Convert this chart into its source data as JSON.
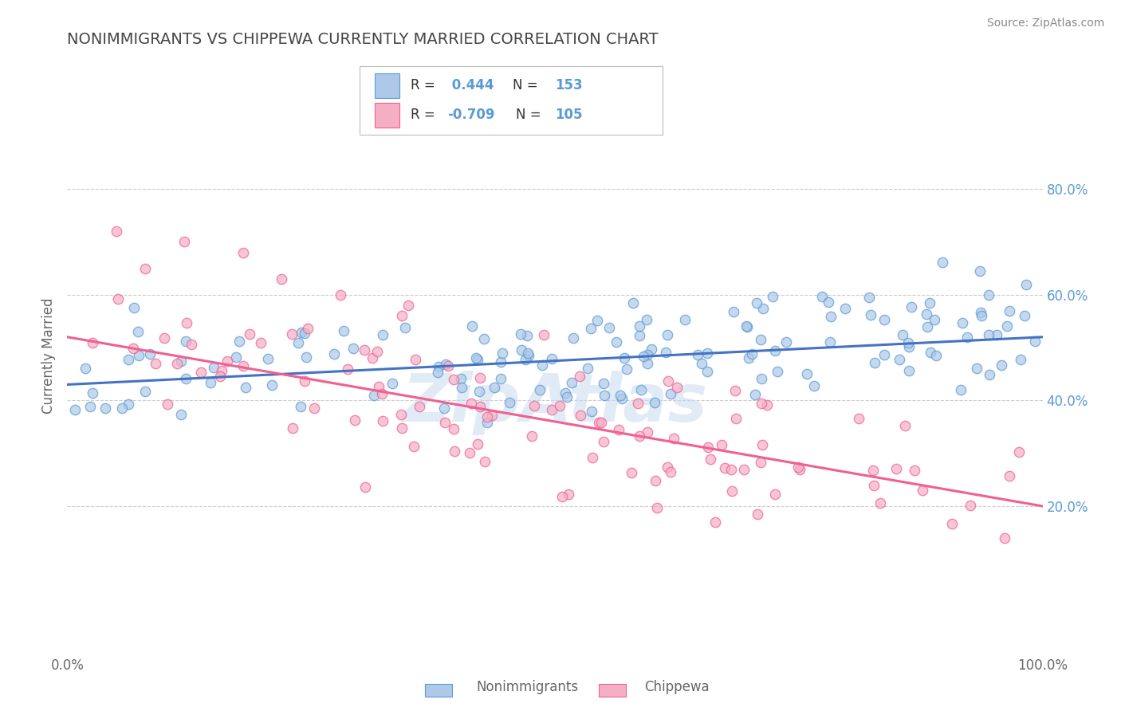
{
  "title": "NONIMMIGRANTS VS CHIPPEWA CURRENTLY MARRIED CORRELATION CHART",
  "source": "Source: ZipAtlas.com",
  "ylabel": "Currently Married",
  "x_min": 0.0,
  "x_max": 100.0,
  "y_min": 0.0,
  "y_max": 100.0,
  "y_ticks": [
    20.0,
    40.0,
    60.0,
    80.0
  ],
  "blue_R": 0.444,
  "blue_N": 153,
  "pink_R": -0.709,
  "pink_N": 105,
  "blue_color": "#adc8e8",
  "pink_color": "#f5afc5",
  "blue_edge_color": "#5b9bd5",
  "pink_edge_color": "#f06090",
  "blue_line_color": "#4472c4",
  "pink_line_color": "#f06090",
  "legend_label_blue": "Nonimmigrants",
  "legend_label_pink": "Chippewa",
  "watermark": "ZipAtlas",
  "background_color": "#ffffff",
  "grid_color": "#cccccc",
  "title_color": "#444444",
  "blue_scatter_seed": 42,
  "pink_scatter_seed": 123,
  "blue_trend_x0": 0.0,
  "blue_trend_y0": 43.0,
  "blue_trend_x1": 100.0,
  "blue_trend_y1": 52.0,
  "pink_trend_x0": 0.0,
  "pink_trend_y0": 52.0,
  "pink_trend_x1": 100.0,
  "pink_trend_y1": 20.0
}
